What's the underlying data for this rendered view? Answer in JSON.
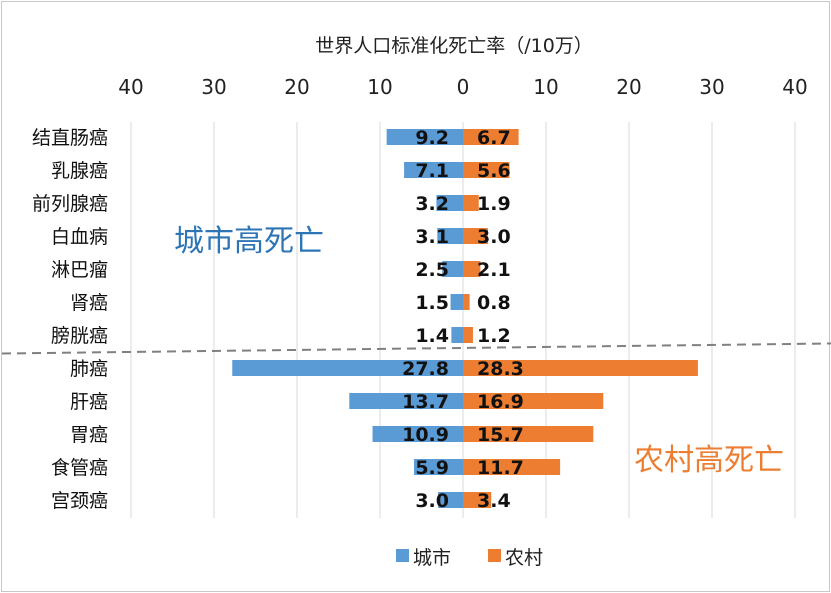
{
  "chart_data": {
    "type": "bar",
    "orientation": "horizontal-butterfly",
    "title": "世界人口标准化死亡率（/10万）",
    "xlim": [
      0,
      40
    ],
    "xticks": [
      "40",
      "30",
      "20",
      "10",
      "0",
      "10",
      "20",
      "30",
      "40"
    ],
    "categories": [
      "结直肠癌",
      "乳腺癌",
      "前列腺癌",
      "白血病",
      "淋巴瘤",
      "肾癌",
      "膀胱癌",
      "肺癌",
      "肝癌",
      "胃癌",
      "食管癌",
      "宫颈癌"
    ],
    "series": [
      {
        "name": "城市",
        "color": "#5b9bd5",
        "values": [
          9.2,
          7.1,
          3.2,
          3.1,
          2.5,
          1.5,
          1.4,
          27.8,
          13.7,
          10.9,
          5.9,
          3.0
        ]
      },
      {
        "name": "农村",
        "color": "#ed7d31",
        "values": [
          6.7,
          5.6,
          1.9,
          3.0,
          2.1,
          0.8,
          1.2,
          28.3,
          16.9,
          15.7,
          11.7,
          3.4
        ]
      }
    ],
    "annotations": [
      {
        "text": "城市高死亡",
        "color": "#2e75b6"
      },
      {
        "text": "农村高死亡",
        "color": "#ed7d31"
      }
    ],
    "divider_after_index": 6,
    "grid": true,
    "legend_position": "bottom"
  }
}
